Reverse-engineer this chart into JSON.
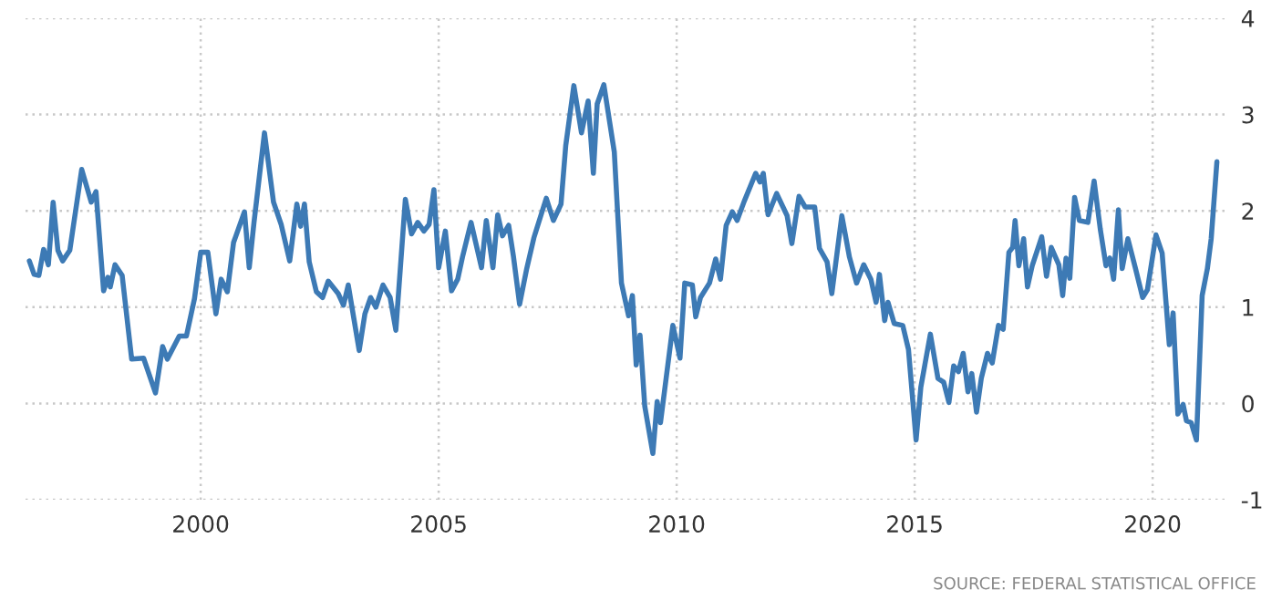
{
  "chart_data": {
    "type": "line",
    "x": [
      1996.4,
      1996.5,
      1996.6,
      1996.7,
      1996.8,
      1996.9,
      1997.0,
      1997.1,
      1997.25,
      1997.5,
      1997.7,
      1997.8,
      1997.96,
      1998.05,
      1998.1,
      1998.2,
      1998.35,
      1998.55,
      1998.8,
      1999.05,
      1999.2,
      1999.3,
      1999.55,
      1999.7,
      1999.87,
      2000.0,
      2000.15,
      2000.32,
      2000.43,
      2000.56,
      2000.69,
      2000.92,
      2001.02,
      2001.12,
      2001.34,
      2001.53,
      2001.69,
      2001.87,
      2002.02,
      2002.1,
      2002.18,
      2002.28,
      2002.43,
      2002.56,
      2002.68,
      2002.89,
      2003.0,
      2003.1,
      2003.33,
      2003.45,
      2003.57,
      2003.68,
      2003.83,
      2003.98,
      2004.1,
      2004.3,
      2004.43,
      2004.56,
      2004.69,
      2004.8,
      2004.9,
      2005.0,
      2005.14,
      2005.27,
      2005.4,
      2005.5,
      2005.68,
      2005.9,
      2006.0,
      2006.14,
      2006.24,
      2006.34,
      2006.47,
      2006.57,
      2006.7,
      2006.85,
      2007.0,
      2007.26,
      2007.41,
      2007.57,
      2007.67,
      2007.84,
      2008.0,
      2008.14,
      2008.25,
      2008.33,
      2008.47,
      2008.69,
      2008.84,
      2008.99,
      2009.07,
      2009.15,
      2009.23,
      2009.33,
      2009.5,
      2009.59,
      2009.66,
      2009.92,
      2010.07,
      2010.17,
      2010.33,
      2010.4,
      2010.5,
      2010.69,
      2010.82,
      2010.92,
      2011.04,
      2011.17,
      2011.27,
      2011.42,
      2011.66,
      2011.75,
      2011.82,
      2011.92,
      2012.1,
      2012.32,
      2012.42,
      2012.57,
      2012.7,
      2012.9,
      2013.0,
      2013.16,
      2013.26,
      2013.47,
      2013.63,
      2013.78,
      2013.93,
      2014.08,
      2014.19,
      2014.26,
      2014.37,
      2014.44,
      2014.57,
      2014.75,
      2014.87,
      2015.03,
      2015.13,
      2015.33,
      2015.49,
      2015.61,
      2015.72,
      2015.82,
      2015.92,
      2016.02,
      2016.12,
      2016.2,
      2016.3,
      2016.4,
      2016.53,
      2016.63,
      2016.76,
      2016.86,
      2016.98,
      2017.06,
      2017.11,
      2017.19,
      2017.29,
      2017.37,
      2017.47,
      2017.67,
      2017.77,
      2017.87,
      2018.03,
      2018.11,
      2018.18,
      2018.26,
      2018.36,
      2018.46,
      2018.64,
      2018.77,
      2018.9,
      2019.02,
      2019.1,
      2019.18,
      2019.28,
      2019.36,
      2019.48,
      2019.64,
      2019.79,
      2019.89,
      2020.07,
      2020.2,
      2020.35,
      2020.43,
      2020.53,
      2020.64,
      2020.71,
      2020.81,
      2020.92,
      2021.04,
      2021.15,
      2021.23,
      2021.35
    ],
    "series": [
      {
        "color": "#3d7ab5",
        "values": [
          1.48,
          1.34,
          1.33,
          1.6,
          1.44,
          2.09,
          1.59,
          1.48,
          1.59,
          2.43,
          2.09,
          2.2,
          1.17,
          1.31,
          1.21,
          1.44,
          1.33,
          0.46,
          0.47,
          0.11,
          0.59,
          0.46,
          0.7,
          0.7,
          1.09,
          1.57,
          1.57,
          0.93,
          1.29,
          1.16,
          1.67,
          1.99,
          1.41,
          1.88,
          2.81,
          2.09,
          1.86,
          1.48,
          2.07,
          1.84,
          2.07,
          1.47,
          1.16,
          1.1,
          1.27,
          1.14,
          1.02,
          1.23,
          0.55,
          0.93,
          1.1,
          1.0,
          1.23,
          1.1,
          0.76,
          2.12,
          1.76,
          1.88,
          1.79,
          1.86,
          2.22,
          1.41,
          1.79,
          1.17,
          1.29,
          1.52,
          1.88,
          1.41,
          1.9,
          1.41,
          1.96,
          1.74,
          1.85,
          1.53,
          1.03,
          1.4,
          1.72,
          2.13,
          1.9,
          2.07,
          2.68,
          3.3,
          2.81,
          3.14,
          2.39,
          3.11,
          3.31,
          2.61,
          1.25,
          0.91,
          1.12,
          0.4,
          0.71,
          -0.03,
          -0.52,
          0.02,
          -0.2,
          0.81,
          0.47,
          1.25,
          1.23,
          0.9,
          1.1,
          1.25,
          1.5,
          1.29,
          1.85,
          1.99,
          1.9,
          2.1,
          2.39,
          2.3,
          2.39,
          1.96,
          2.18,
          1.95,
          1.66,
          2.15,
          2.04,
          2.04,
          1.61,
          1.47,
          1.14,
          1.95,
          1.52,
          1.25,
          1.44,
          1.29,
          1.05,
          1.34,
          0.86,
          1.05,
          0.83,
          0.81,
          0.56,
          -0.38,
          0.17,
          0.72,
          0.26,
          0.22,
          0.01,
          0.39,
          0.33,
          0.52,
          0.12,
          0.31,
          -0.09,
          0.26,
          0.52,
          0.42,
          0.81,
          0.77,
          1.57,
          1.62,
          1.9,
          1.43,
          1.71,
          1.21,
          1.43,
          1.73,
          1.32,
          1.62,
          1.44,
          1.12,
          1.51,
          1.3,
          2.14,
          1.9,
          1.88,
          2.31,
          1.81,
          1.43,
          1.51,
          1.29,
          2.01,
          1.4,
          1.71,
          1.4,
          1.1,
          1.18,
          1.75,
          1.56,
          0.61,
          0.94,
          -0.11,
          -0.01,
          -0.18,
          -0.2,
          -0.38,
          1.12,
          1.4,
          1.71,
          2.51
        ]
      }
    ],
    "xlim": [
      1996.32,
      2021.53
    ],
    "xticks": [
      2000,
      2005,
      2010,
      2015,
      2020
    ],
    "ylim": [
      -1,
      4
    ],
    "yticks": [
      -1,
      0,
      1,
      2,
      3,
      4
    ],
    "grid": true,
    "annotations": [
      "SOURCE: FEDERAL STATISTICAL OFFICE"
    ]
  }
}
